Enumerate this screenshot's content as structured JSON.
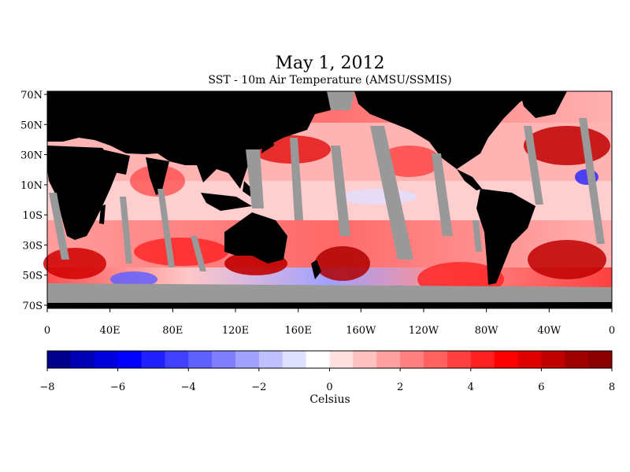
{
  "title": "May 1, 2012",
  "subtitle": "SST - 10m Air Temperature (AMSU/SSMIS)",
  "map": {
    "lat_labels": [
      "70N",
      "50N",
      "30N",
      "10N",
      "10S",
      "30S",
      "50S",
      "70S"
    ],
    "lon_labels": [
      "0",
      "40E",
      "80E",
      "120E",
      "160E",
      "160W",
      "120W",
      "80W",
      "40W",
      "0"
    ],
    "land_color": "#000000",
    "missing_color": "#999999"
  },
  "colorbar": {
    "unit": "Celsius",
    "tick_labels": [
      "−8",
      "−6",
      "−4",
      "−2",
      "0",
      "2",
      "4",
      "6",
      "8"
    ],
    "min": -8,
    "max": 8,
    "colors": [
      "#00008c",
      "#0000b4",
      "#0000dc",
      "#0000ff",
      "#2020ff",
      "#4040ff",
      "#6060ff",
      "#8080ff",
      "#a0a0ff",
      "#c0c0ff",
      "#e0e0ff",
      "#ffffff",
      "#ffe0e0",
      "#ffc0c0",
      "#ffa0a0",
      "#ff8080",
      "#ff6060",
      "#ff4040",
      "#ff2020",
      "#ff0000",
      "#e00000",
      "#c00000",
      "#a00000",
      "#8c0000"
    ]
  }
}
